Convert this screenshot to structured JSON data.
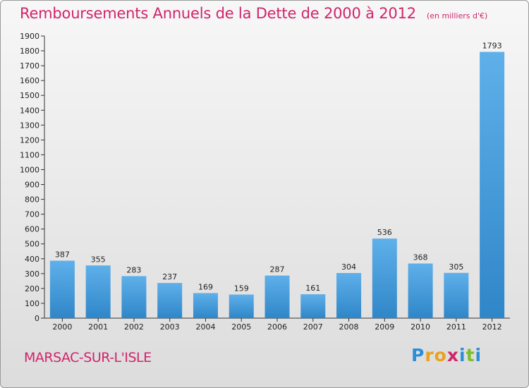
{
  "title": "Remboursements Annuels de la Dette de 2000 à 2012",
  "unit_note": "(en milliers d'€)",
  "commune": "MARSAC-SUR-L'ISLE",
  "logo": {
    "letters": [
      "P",
      "r",
      "o",
      "x",
      "i",
      "t",
      "i"
    ],
    "colors": [
      "#2a8fd6",
      "#e8a21c",
      "#e8a21c",
      "#d0246b",
      "#2a8fd6",
      "#7bbf2a",
      "#2a8fd6"
    ]
  },
  "colors": {
    "bar_light": "#5fb0ea",
    "bar_dark": "#2f86c8",
    "title": "#d0246b"
  },
  "chart_data": {
    "type": "bar",
    "categories": [
      "2000",
      "2001",
      "2002",
      "2003",
      "2004",
      "2005",
      "2006",
      "2007",
      "2008",
      "2009",
      "2010",
      "2011",
      "2012"
    ],
    "values": [
      387,
      355,
      283,
      237,
      169,
      159,
      287,
      161,
      304,
      536,
      368,
      305,
      1793
    ],
    "ylim": [
      0,
      1900
    ],
    "yticks": [
      0,
      100,
      200,
      300,
      400,
      500,
      600,
      700,
      800,
      900,
      1000,
      1100,
      1200,
      1300,
      1400,
      1500,
      1600,
      1700,
      1800,
      1900
    ],
    "grid": false
  }
}
